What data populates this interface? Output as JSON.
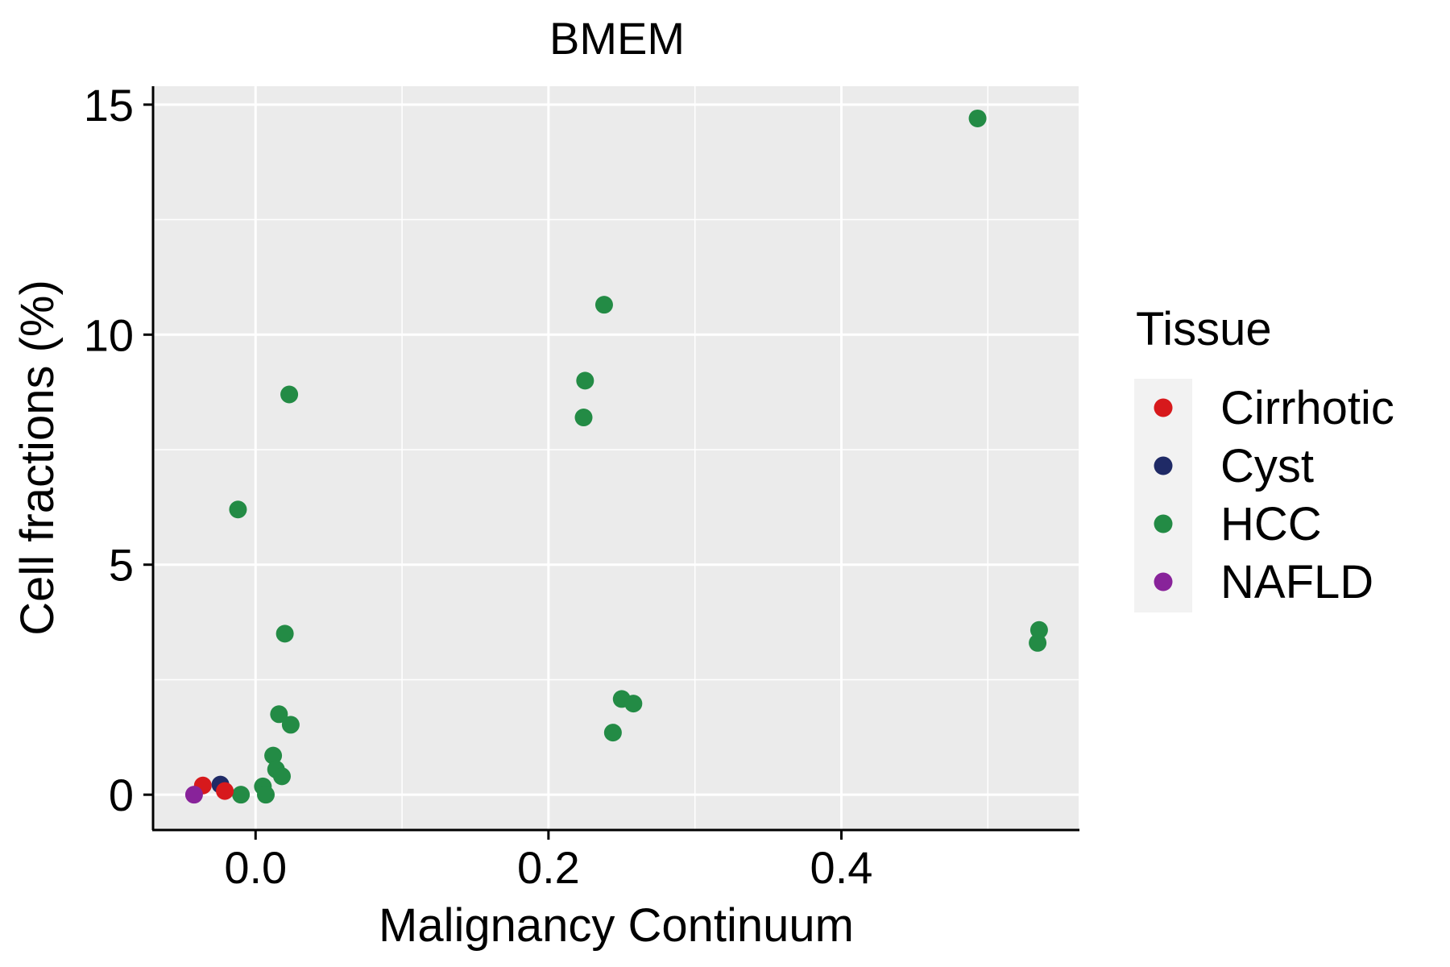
{
  "chart_data": {
    "type": "scatter",
    "title": "BMEM",
    "xlabel": "Malignancy Continuum",
    "ylabel": "Cell fractions (%)",
    "xlim": [
      -0.07,
      0.562
    ],
    "ylim": [
      -0.75,
      15.4
    ],
    "x_major_ticks": [
      0.0,
      0.2,
      0.4
    ],
    "x_tick_labels": [
      "0.0",
      "0.2",
      "0.4"
    ],
    "x_minor_ticks": [
      0.1,
      0.3,
      0.5
    ],
    "y_major_ticks": [
      0,
      5,
      10,
      15
    ],
    "y_tick_labels": [
      "0",
      "5",
      "10",
      "15"
    ],
    "y_minor_ticks": [
      2.5,
      7.5,
      12.5
    ],
    "grid": true,
    "panel_background": "#EBEBEB",
    "legend": {
      "title": "Tissue",
      "position": "right",
      "items": [
        {
          "label": "Cirrhotic",
          "color": "#D7191C"
        },
        {
          "label": "Cyst",
          "color": "#1F2A66"
        },
        {
          "label": "HCC",
          "color": "#238B45"
        },
        {
          "label": "NAFLD",
          "color": "#88239A"
        }
      ]
    },
    "series": [
      {
        "name": "HCC",
        "color": "#238B45",
        "points": [
          {
            "x": -0.01,
            "y": 0.0
          },
          {
            "x": 0.005,
            "y": 0.18
          },
          {
            "x": 0.007,
            "y": 0.0
          },
          {
            "x": 0.012,
            "y": 0.85
          },
          {
            "x": 0.014,
            "y": 0.55
          },
          {
            "x": 0.018,
            "y": 0.4
          },
          {
            "x": 0.016,
            "y": 1.75
          },
          {
            "x": 0.024,
            "y": 1.52
          },
          {
            "x": 0.02,
            "y": 3.5
          },
          {
            "x": -0.012,
            "y": 6.2
          },
          {
            "x": 0.023,
            "y": 8.7
          },
          {
            "x": 0.224,
            "y": 8.2
          },
          {
            "x": 0.225,
            "y": 9.0
          },
          {
            "x": 0.238,
            "y": 10.65
          },
          {
            "x": 0.244,
            "y": 1.35
          },
          {
            "x": 0.25,
            "y": 2.08
          },
          {
            "x": 0.258,
            "y": 1.98
          },
          {
            "x": 0.493,
            "y": 14.7
          },
          {
            "x": 0.534,
            "y": 3.3
          },
          {
            "x": 0.535,
            "y": 3.58
          }
        ]
      },
      {
        "name": "Cyst",
        "color": "#1F2A66",
        "points": [
          {
            "x": -0.024,
            "y": 0.22
          }
        ]
      },
      {
        "name": "Cirrhotic",
        "color": "#D7191C",
        "points": [
          {
            "x": -0.036,
            "y": 0.2
          },
          {
            "x": -0.021,
            "y": 0.08
          }
        ]
      },
      {
        "name": "NAFLD",
        "color": "#88239A",
        "points": [
          {
            "x": -0.042,
            "y": 0.0
          }
        ]
      }
    ]
  }
}
